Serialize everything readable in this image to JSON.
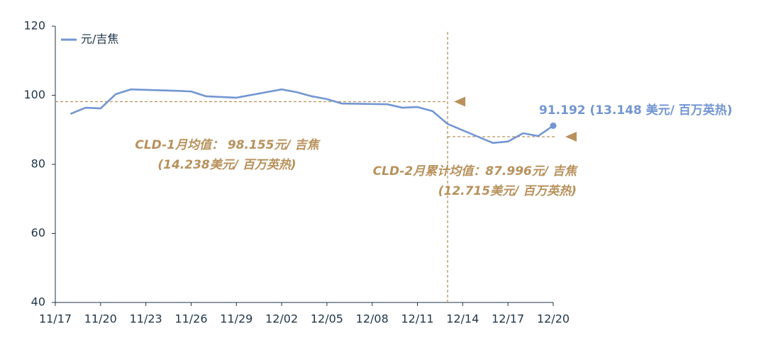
{
  "chart_data": {
    "type": "line",
    "x": [
      "11/18",
      "11/19",
      "11/20",
      "11/21",
      "11/22",
      "11/25",
      "11/26",
      "11/27",
      "11/28",
      "11/29",
      "12/02",
      "12/03",
      "12/04",
      "12/05",
      "12/06",
      "12/09",
      "12/10",
      "12/11",
      "12/12",
      "12/13",
      "12/16",
      "12/17",
      "12/18",
      "12/19",
      "12/20"
    ],
    "series": [
      {
        "name": "元/吉焦",
        "color": "#7396d2",
        "values": [
          94.6,
          96.4,
          96.2,
          100.3,
          101.7,
          101.3,
          101.1,
          99.7,
          99.5,
          99.3,
          101.7,
          100.9,
          99.7,
          98.9,
          97.6,
          97.4,
          96.4,
          96.6,
          95.4,
          91.7,
          86.2,
          86.6,
          89.0,
          88.2,
          91.192
        ]
      }
    ],
    "xlim": [
      "11/17",
      "12/20"
    ],
    "xticks": [
      "11/17",
      "11/20",
      "11/23",
      "11/26",
      "11/29",
      "12/02",
      "12/05",
      "12/08",
      "12/11",
      "12/14",
      "12/17",
      "12/20"
    ],
    "ylim": [
      40,
      120
    ],
    "yticks": [
      40,
      60,
      80,
      100,
      120
    ],
    "legend": "upper left",
    "end_label": "91.192  (13.148 美元/ 百万英热)",
    "divider_x": "12/13",
    "reference_lines": [
      {
        "value": 98.155,
        "color": "#b8915c",
        "side": "before",
        "label": [
          "CLD-1月均值：  98.155元/ 吉焦",
          "(14.238美元/ 百万英热)"
        ]
      },
      {
        "value": 87.996,
        "color": "#b8915c",
        "side": "after",
        "label": [
          "CLD-2月累计均值：87.996元/ 吉焦",
          "(12.715美元/ 百万英热)"
        ]
      }
    ]
  }
}
